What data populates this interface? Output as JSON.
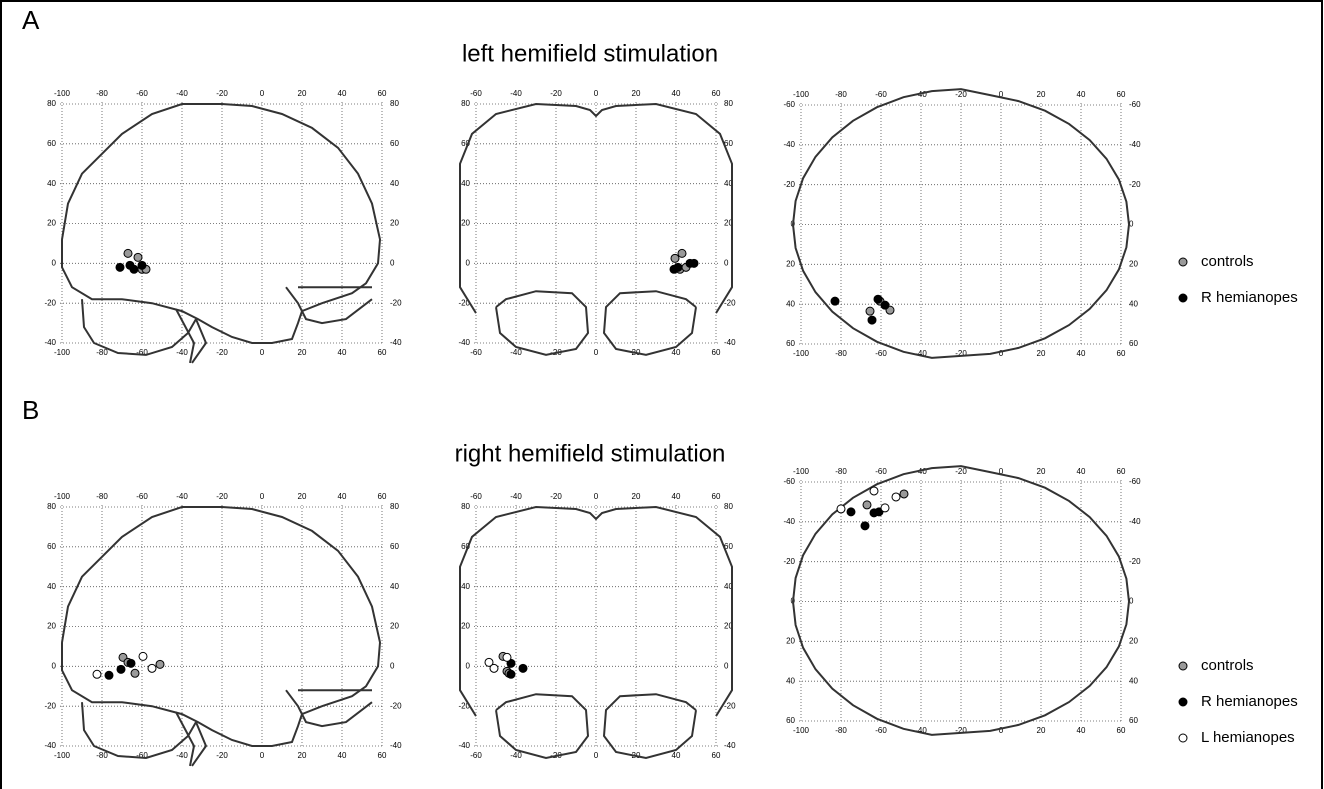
{
  "panels": [
    {
      "label": "A",
      "title": "left hemifield stimulation"
    },
    {
      "label": "B",
      "title": "right hemifield stimulation"
    }
  ],
  "chart_data": [
    {
      "type": "scatter",
      "xlim": [
        -100,
        60
      ],
      "ylim": [
        -40,
        80
      ],
      "xticks": [
        -100,
        -80,
        -60,
        -40,
        -20,
        0,
        20,
        40,
        60
      ],
      "yticks": [
        -40,
        -20,
        0,
        20,
        40,
        60,
        80
      ],
      "grid": true,
      "series": [
        {
          "name": "controls",
          "color": "#9a9a9a",
          "x": [
            -67,
            -62,
            -60,
            -58
          ],
          "y": [
            5,
            3,
            -3,
            -3
          ]
        },
        {
          "name": "R hemianopes",
          "color": "#000000",
          "x": [
            -71,
            -66,
            -64,
            -60
          ],
          "y": [
            -2,
            -1,
            -3,
            -1
          ]
        }
      ]
    },
    {
      "type": "scatter",
      "xlim": [
        -60,
        60
      ],
      "ylim": [
        -40,
        80
      ],
      "xticks": [
        -60,
        -40,
        -20,
        0,
        20,
        40,
        60
      ],
      "yticks": [
        -40,
        -20,
        0,
        20,
        40,
        60,
        80
      ],
      "grid": true,
      "series": [
        {
          "name": "controls",
          "color": "#9a9a9a",
          "x": [
            39.5,
            43,
            42,
            45
          ],
          "y": [
            2.5,
            5,
            -3,
            -2
          ]
        },
        {
          "name": "R hemianopes",
          "color": "#000000",
          "x": [
            39,
            41,
            47,
            49
          ],
          "y": [
            -3,
            -2,
            0,
            0
          ]
        }
      ]
    },
    {
      "type": "scatter",
      "xlim": [
        -100,
        60
      ],
      "ylim": [
        60,
        -60
      ],
      "xticks": [
        -100,
        -80,
        -60,
        -40,
        -20,
        0,
        20,
        40,
        60
      ],
      "yticks": [
        -60,
        -40,
        -20,
        0,
        20,
        40,
        60
      ],
      "grid": true,
      "series": [
        {
          "name": "controls",
          "color": "#9a9a9a",
          "x": [
            -65.5,
            -60.5,
            -55.5
          ],
          "y": [
            43.5,
            38.5,
            43
          ]
        },
        {
          "name": "R hemianopes",
          "color": "#000000",
          "x": [
            -83,
            -61.5,
            -58,
            -64.5
          ],
          "y": [
            38.5,
            37.5,
            40.5,
            48
          ]
        }
      ]
    },
    {
      "type": "scatter",
      "xlim": [
        -100,
        60
      ],
      "ylim": [
        -40,
        80
      ],
      "xticks": [
        -100,
        -80,
        -60,
        -40,
        -20,
        0,
        20,
        40,
        60
      ],
      "yticks": [
        -40,
        -20,
        0,
        20,
        40,
        60,
        80
      ],
      "grid": true,
      "series": [
        {
          "name": "controls",
          "color": "#9a9a9a",
          "x": [
            -69.5,
            -67,
            -63.5,
            -51
          ],
          "y": [
            4.5,
            2,
            -3.5,
            1
          ]
        },
        {
          "name": "R hemianopes",
          "color": "#000000",
          "x": [
            -76.5,
            -70.5,
            -65.5
          ],
          "y": [
            -4.5,
            -1.5,
            1.5
          ]
        },
        {
          "name": "L hemianopes",
          "color": "#ffffff",
          "x": [
            -82.5,
            -59.5,
            -55
          ],
          "y": [
            -4,
            5,
            -1
          ]
        }
      ]
    },
    {
      "type": "scatter",
      "xlim": [
        -60,
        60
      ],
      "ylim": [
        -40,
        80
      ],
      "xticks": [
        -60,
        -40,
        -20,
        0,
        20,
        40,
        60
      ],
      "yticks": [
        -40,
        -20,
        0,
        20,
        40,
        60,
        80
      ],
      "grid": true,
      "series": [
        {
          "name": "controls",
          "color": "#9a9a9a",
          "x": [
            -46.5,
            -44.5,
            -43.5
          ],
          "y": [
            5,
            -2.5,
            -3.5
          ]
        },
        {
          "name": "R hemianopes",
          "color": "#000000",
          "x": [
            -42.5,
            -42.5,
            -36.5
          ],
          "y": [
            1.5,
            -4,
            -1
          ]
        },
        {
          "name": "L hemianopes",
          "color": "#ffffff",
          "x": [
            -53.5,
            -51,
            -44.5
          ],
          "y": [
            2,
            -1,
            4.5
          ]
        }
      ]
    },
    {
      "type": "scatter",
      "xlim": [
        -100,
        60
      ],
      "ylim": [
        60,
        -60
      ],
      "xticks": [
        -100,
        -80,
        -60,
        -40,
        -20,
        0,
        20,
        40,
        60
      ],
      "yticks": [
        -60,
        -40,
        -20,
        0,
        20,
        40,
        60
      ],
      "grid": true,
      "series": [
        {
          "name": "controls",
          "color": "#9a9a9a",
          "x": [
            -67,
            -48.5
          ],
          "y": [
            -48.5,
            -54
          ]
        },
        {
          "name": "R hemianopes",
          "color": "#000000",
          "x": [
            -75,
            -63.5,
            -61,
            -68
          ],
          "y": [
            -45,
            -44.5,
            -45,
            -38
          ]
        },
        {
          "name": "L hemianopes",
          "color": "#ffffff",
          "x": [
            -80,
            -63.5,
            -58,
            -52.5
          ],
          "y": [
            -46.5,
            -55.5,
            -47,
            -52.5
          ]
        }
      ]
    }
  ]
}
